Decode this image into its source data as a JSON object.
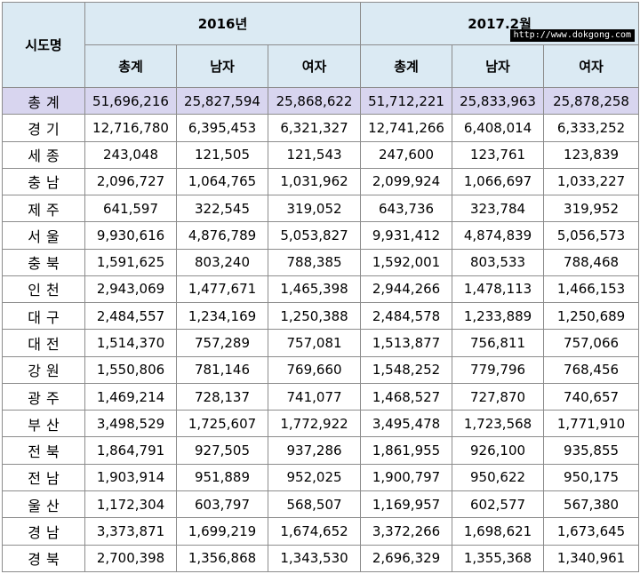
{
  "header": {
    "region_col": "시도명",
    "years": [
      "2016년",
      "2017.2월"
    ],
    "subcols": [
      "총계",
      "남자",
      "여자"
    ],
    "watermark": "http://www.dokgong.com"
  },
  "rows": [
    {
      "region": "총계",
      "v": [
        "51,696,216",
        "25,827,594",
        "25,868,622",
        "51,712,221",
        "25,833,963",
        "25,878,258"
      ]
    },
    {
      "region": "경기",
      "v": [
        "12,716,780",
        "6,395,453",
        "6,321,327",
        "12,741,266",
        "6,408,014",
        "6,333,252"
      ]
    },
    {
      "region": "세종",
      "v": [
        "243,048",
        "121,505",
        "121,543",
        "247,600",
        "123,761",
        "123,839"
      ]
    },
    {
      "region": "충남",
      "v": [
        "2,096,727",
        "1,064,765",
        "1,031,962",
        "2,099,924",
        "1,066,697",
        "1,033,227"
      ]
    },
    {
      "region": "제주",
      "v": [
        "641,597",
        "322,545",
        "319,052",
        "643,736",
        "323,784",
        "319,952"
      ]
    },
    {
      "region": "서울",
      "v": [
        "9,930,616",
        "4,876,789",
        "5,053,827",
        "9,931,412",
        "4,874,839",
        "5,056,573"
      ]
    },
    {
      "region": "충북",
      "v": [
        "1,591,625",
        "803,240",
        "788,385",
        "1,592,001",
        "803,533",
        "788,468"
      ]
    },
    {
      "region": "인천",
      "v": [
        "2,943,069",
        "1,477,671",
        "1,465,398",
        "2,944,266",
        "1,478,113",
        "1,466,153"
      ]
    },
    {
      "region": "대구",
      "v": [
        "2,484,557",
        "1,234,169",
        "1,250,388",
        "2,484,578",
        "1,233,889",
        "1,250,689"
      ]
    },
    {
      "region": "대전",
      "v": [
        "1,514,370",
        "757,289",
        "757,081",
        "1,513,877",
        "756,811",
        "757,066"
      ]
    },
    {
      "region": "강원",
      "v": [
        "1,550,806",
        "781,146",
        "769,660",
        "1,548,252",
        "779,796",
        "768,456"
      ]
    },
    {
      "region": "광주",
      "v": [
        "1,469,214",
        "728,137",
        "741,077",
        "1,468,527",
        "727,870",
        "740,657"
      ]
    },
    {
      "region": "부산",
      "v": [
        "3,498,529",
        "1,725,607",
        "1,772,922",
        "3,495,478",
        "1,723,568",
        "1,771,910"
      ]
    },
    {
      "region": "전북",
      "v": [
        "1,864,791",
        "927,505",
        "937,286",
        "1,861,955",
        "926,100",
        "935,855"
      ]
    },
    {
      "region": "전남",
      "v": [
        "1,903,914",
        "951,889",
        "952,025",
        "1,900,797",
        "950,622",
        "950,175"
      ]
    },
    {
      "region": "울산",
      "v": [
        "1,172,304",
        "603,797",
        "568,507",
        "1,169,957",
        "602,577",
        "567,380"
      ]
    },
    {
      "region": "경남",
      "v": [
        "3,373,871",
        "1,699,219",
        "1,674,652",
        "3,372,266",
        "1,698,621",
        "1,673,645"
      ]
    },
    {
      "region": "경북",
      "v": [
        "2,700,398",
        "1,356,868",
        "1,343,530",
        "2,696,329",
        "1,355,368",
        "1,340,961"
      ]
    }
  ]
}
